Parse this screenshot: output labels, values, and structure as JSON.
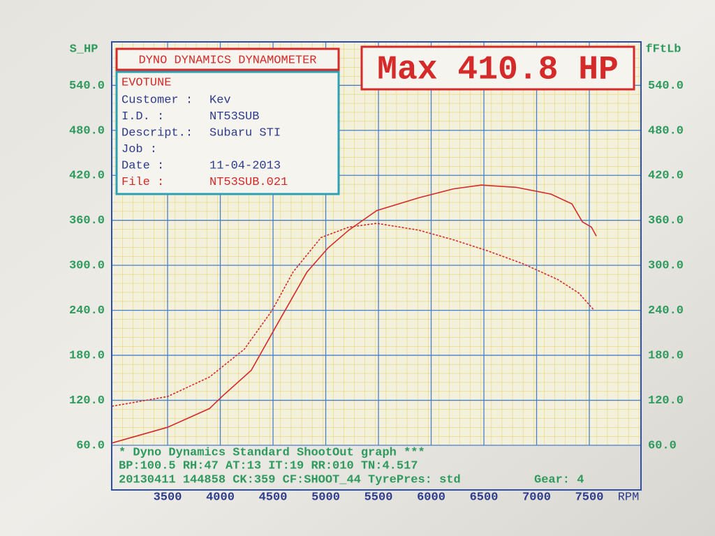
{
  "chart_data": {
    "type": "line",
    "title": "DYNO DYNAMICS DYNAMOMETER",
    "annotation": "Max 410.8 HP",
    "ylabel": "S_HP",
    "y2label": "fFtLb",
    "xlabel": "RPM",
    "info": {
      "company": "EVOTUNE",
      "rows": [
        [
          "Customer :",
          "Kev"
        ],
        [
          "I.D.     :",
          "NT53SUB"
        ],
        [
          "Descript.:",
          "Subaru STI"
        ],
        [
          "Job      :"
        ],
        [
          "Date     :",
          "11-04-2013"
        ],
        [
          "File     :",
          "NT53SUB.021"
        ]
      ]
    },
    "footer": [
      "* Dyno Dynamics Standard ShootOut graph ***",
      "BP:100.5 RH:47 AT:13 IT:19 RR:010 TN:4.517",
      "20130411 144858 CK:359 CF:SHOOT_44 TyrePres: std",
      "Gear: 4"
    ],
    "xlim": [
      2970,
      7990
    ],
    "xticks": [
      3500,
      4000,
      4500,
      5000,
      5500,
      6000,
      6500,
      7000,
      7500
    ],
    "ylim": [
      60,
      598
    ],
    "yticks": [
      {
        "value": 60,
        "label": "60.0"
      },
      {
        "value": 120,
        "label": "120.0"
      },
      {
        "value": 180,
        "label": "180.0"
      },
      {
        "value": 240,
        "label": "240.0"
      },
      {
        "value": 300,
        "label": "300.0"
      },
      {
        "value": 360,
        "label": "360.0"
      },
      {
        "value": 420,
        "label": "420.0"
      },
      {
        "value": 480,
        "label": "480.0"
      },
      {
        "value": 540,
        "label": "540.0"
      }
    ],
    "y2lim": [
      60,
      598
    ],
    "y2ticks": [
      {
        "value": 60,
        "label": "60.0"
      },
      {
        "value": 120,
        "label": "120.0"
      },
      {
        "value": 180,
        "label": "180.0"
      },
      {
        "value": 240,
        "label": "240.0"
      },
      {
        "value": 300,
        "label": "300.0"
      },
      {
        "value": 360,
        "label": "360.0"
      },
      {
        "value": 420,
        "label": "420.0"
      },
      {
        "value": 480,
        "label": "480.0"
      },
      {
        "value": 540,
        "label": "540.0"
      }
    ],
    "grid": true,
    "series": [
      {
        "color": "#d42a2a",
        "style": "solid",
        "x": [
          2971,
          3500,
          3897,
          4016,
          4293,
          4558,
          4822,
          5021,
          5219,
          5483,
          5880,
          6211,
          6475,
          6806,
          7136,
          7335,
          7434,
          7520,
          7566
        ],
        "values": [
          63,
          84,
          109,
          125,
          160,
          226,
          291,
          323,
          347,
          373,
          390,
          402,
          407,
          404,
          395,
          382,
          358,
          351,
          339
        ]
      },
      {
        "color": "#d42a2a",
        "style": "dashed",
        "axis": "y2",
        "x": [
          2971,
          3500,
          3897,
          4227,
          4492,
          4690,
          4955,
          5219,
          5483,
          5880,
          6211,
          6541,
          6872,
          7202,
          7400,
          7546
        ],
        "values": [
          112,
          125,
          151,
          188,
          240,
          291,
          337,
          351,
          356,
          347,
          334,
          319,
          302,
          281,
          263,
          240
        ]
      }
    ]
  }
}
